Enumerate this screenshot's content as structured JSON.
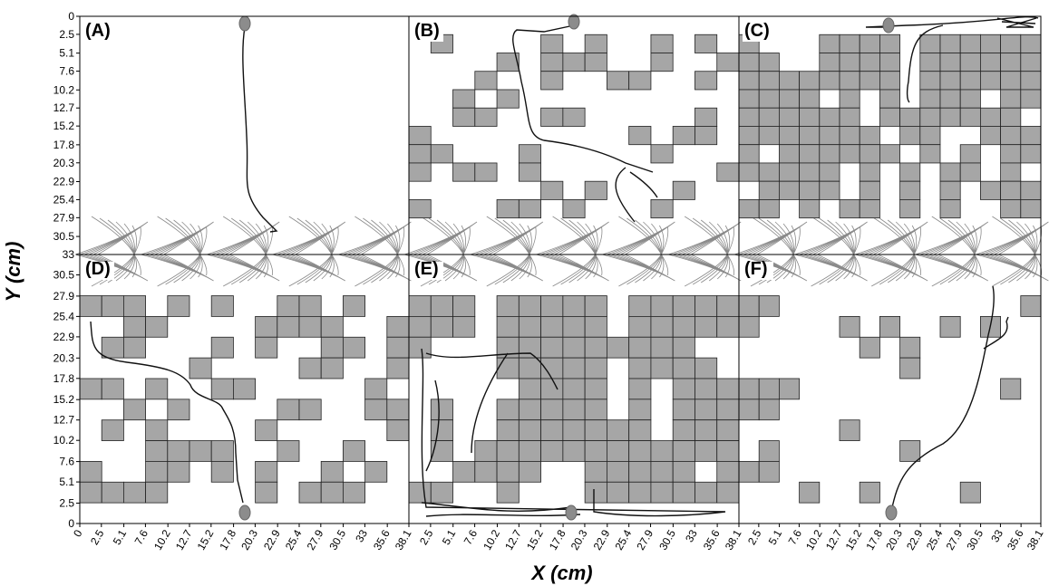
{
  "y_axis_label": "Y (cm)",
  "x_axis_label": "X (cm)",
  "yticks_top": [
    0,
    2.5,
    5.1,
    7.6,
    10.2,
    12.7,
    15.2,
    17.8,
    20.3,
    22.9,
    25.4,
    27.9,
    30.5,
    33
  ],
  "yticks_bottom": [
    30.5,
    27.9,
    25.4,
    22.9,
    20.3,
    17.8,
    15.2,
    12.7,
    10.2,
    7.6,
    5.1,
    2.5,
    0
  ],
  "xticks": [
    [
      0,
      2.5,
      5.1,
      7.6,
      10.2,
      12.7,
      15.2,
      17.8,
      20.3,
      22.9,
      25.4,
      27.9,
      30.5,
      33,
      35.6,
      38.1
    ],
    [
      2.5,
      5.1,
      7.6,
      10.2,
      12.7,
      15.2,
      17.8,
      20.3,
      22.9,
      25.4,
      27.9,
      30.5,
      33,
      35.6,
      38.1
    ],
    [
      2.5,
      5.1,
      7.6,
      10.2,
      12.7,
      15.2,
      17.8,
      20.3,
      22.9,
      25.4,
      27.9,
      30.5,
      33,
      35.6,
      38.1
    ]
  ],
  "panels": [
    {
      "label": "(A)",
      "cells": [
        [],
        [],
        [],
        [],
        [],
        [],
        [],
        [],
        [],
        []
      ]
    },
    {
      "label": "(B)",
      "cells": [
        [
          1,
          6,
          8,
          11,
          13
        ],
        [
          4,
          6,
          7,
          8,
          11,
          14
        ],
        [
          3,
          6,
          9,
          10,
          13
        ],
        [
          2,
          4
        ],
        [
          2,
          3,
          6,
          7,
          13
        ],
        [
          0,
          10,
          12,
          13
        ],
        [
          0,
          1,
          5,
          11
        ],
        [
          0,
          2,
          3,
          5,
          14
        ],
        [
          6,
          8,
          12
        ],
        [
          0,
          4,
          5,
          7,
          11
        ]
      ]
    },
    {
      "label": "(C)",
      "cells": [
        [
          0,
          4,
          5,
          6,
          7,
          9,
          10,
          11,
          12,
          13,
          14
        ],
        [
          0,
          1,
          4,
          5,
          6,
          7,
          9,
          10,
          11,
          12,
          13,
          14
        ],
        [
          0,
          1,
          2,
          3,
          4,
          5,
          6,
          7,
          9,
          10,
          11,
          12,
          13,
          14
        ],
        [
          0,
          1,
          2,
          3,
          5,
          7,
          9,
          10,
          11,
          13,
          14
        ],
        [
          0,
          1,
          2,
          3,
          4,
          5,
          7,
          8,
          9,
          10,
          11,
          12,
          13
        ],
        [
          0,
          1,
          2,
          3,
          4,
          5,
          6,
          8,
          9,
          12,
          13,
          14
        ],
        [
          0,
          2,
          3,
          4,
          5,
          6,
          7,
          9,
          11,
          13,
          14
        ],
        [
          0,
          1,
          2,
          3,
          4,
          6,
          8,
          10,
          11,
          13
        ],
        [
          1,
          2,
          3,
          4,
          6,
          8,
          10,
          12,
          13,
          14
        ],
        [
          0,
          1,
          3,
          5,
          6,
          8,
          10,
          13,
          14
        ]
      ]
    },
    {
      "label": "(D)",
      "cells": [
        [
          0,
          1,
          2,
          4,
          6,
          9,
          10,
          12
        ],
        [
          2,
          3,
          8,
          9,
          10,
          11,
          14
        ],
        [
          1,
          2,
          6,
          8,
          11,
          12,
          14
        ],
        [
          5,
          10,
          11,
          14
        ],
        [
          0,
          1,
          3,
          6,
          7,
          13
        ],
        [
          2,
          4,
          9,
          10,
          13,
          14
        ],
        [
          1,
          3,
          8,
          14
        ],
        [
          3,
          4,
          5,
          6,
          9,
          12
        ],
        [
          0,
          3,
          4,
          6,
          8,
          11,
          13
        ],
        [
          0,
          1,
          2,
          3,
          8,
          10,
          11,
          12
        ]
      ]
    },
    {
      "label": "(E)",
      "cells": [
        [
          0,
          1,
          2,
          4,
          5,
          6,
          7,
          8,
          10,
          11,
          12,
          13,
          14
        ],
        [
          0,
          1,
          2,
          4,
          5,
          6,
          7,
          8,
          10,
          11,
          12,
          13,
          14
        ],
        [
          0,
          4,
          5,
          6,
          7,
          8,
          9,
          10,
          11,
          12
        ],
        [
          4,
          5,
          6,
          7,
          8,
          10,
          11,
          12,
          13
        ],
        [
          5,
          6,
          7,
          8,
          10,
          12,
          13,
          14
        ],
        [
          1,
          4,
          5,
          6,
          7,
          8,
          10,
          12,
          13,
          14
        ],
        [
          1,
          4,
          5,
          6,
          7,
          8,
          9,
          10,
          12,
          13,
          14
        ],
        [
          1,
          3,
          4,
          5,
          6,
          7,
          8,
          9,
          10,
          11,
          12,
          13,
          14
        ],
        [
          2,
          3,
          4,
          5,
          8,
          9,
          10,
          11,
          12,
          14
        ],
        [
          0,
          1,
          4,
          8,
          9,
          10,
          11,
          12,
          13,
          14
        ]
      ]
    },
    {
      "label": "(F)",
      "cells": [
        [
          0,
          1,
          14
        ],
        [
          0,
          5,
          7,
          10,
          12
        ],
        [
          6,
          8
        ],
        [
          8
        ],
        [
          0,
          1,
          2,
          13
        ],
        [
          0,
          1
        ],
        [
          5
        ],
        [
          1,
          8
        ],
        [
          0,
          1
        ],
        [
          3,
          6,
          11
        ]
      ]
    }
  ]
}
